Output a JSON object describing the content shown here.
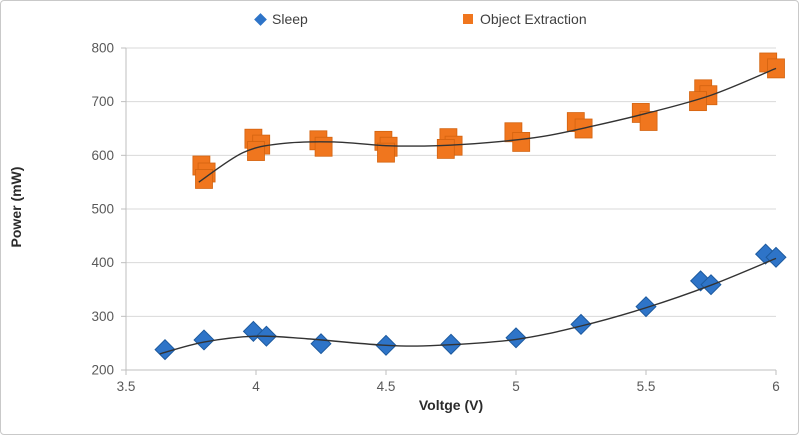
{
  "chart_data": {
    "type": "scatter",
    "title": "",
    "xlabel": "Voltge (V)",
    "ylabel": "Power (mW)",
    "xlim": [
      3.5,
      6
    ],
    "ylim": [
      200,
      800
    ],
    "x_ticks": [
      3.5,
      4,
      4.5,
      5,
      5.5,
      6
    ],
    "x_tick_labels": [
      "3.5",
      "4",
      "4.5",
      "5",
      "5.5",
      "6"
    ],
    "y_ticks": [
      200,
      300,
      400,
      500,
      600,
      700,
      800
    ],
    "y_tick_labels": [
      "200",
      "300",
      "400",
      "500",
      "600",
      "700",
      "800"
    ],
    "grid": true,
    "legend_position": "top-center",
    "colors": {
      "sleep": "#2e74c8",
      "sleep_edge": "#1d5a9e",
      "object_extraction": "#f0761e",
      "object_extraction_edge": "#d3630f",
      "trend_line": "#333333",
      "gridline": "#d9d9d9",
      "axis_line": "#bfbfbf",
      "tick_label": "#595959"
    },
    "series": [
      {
        "name": "Sleep",
        "marker": "diamond",
        "points": [
          [
            3.65,
            238
          ],
          [
            3.8,
            256
          ],
          [
            3.99,
            272
          ],
          [
            4.04,
            263
          ],
          [
            4.25,
            249
          ],
          [
            4.5,
            246
          ],
          [
            4.75,
            248
          ],
          [
            5.0,
            260
          ],
          [
            5.25,
            285
          ],
          [
            5.5,
            318
          ],
          [
            5.71,
            366
          ],
          [
            5.75,
            359
          ],
          [
            5.96,
            416
          ],
          [
            6.0,
            410
          ]
        ],
        "trend": [
          [
            3.63,
            230
          ],
          [
            3.8,
            252
          ],
          [
            4.0,
            263
          ],
          [
            4.2,
            258
          ],
          [
            4.5,
            246
          ],
          [
            4.7,
            246
          ],
          [
            5.0,
            257
          ],
          [
            5.25,
            282
          ],
          [
            5.5,
            316
          ],
          [
            5.75,
            358
          ],
          [
            6.0,
            408
          ]
        ]
      },
      {
        "name": "Object Extraction",
        "marker": "square",
        "points": [
          [
            3.79,
            581
          ],
          [
            3.81,
            568
          ],
          [
            3.8,
            556
          ],
          [
            3.99,
            631
          ],
          [
            4.02,
            620
          ],
          [
            4.0,
            608
          ],
          [
            4.24,
            628
          ],
          [
            4.26,
            616
          ],
          [
            4.49,
            627
          ],
          [
            4.51,
            616
          ],
          [
            4.5,
            605
          ],
          [
            4.74,
            632
          ],
          [
            4.76,
            618
          ],
          [
            4.73,
            612
          ],
          [
            4.99,
            643
          ],
          [
            5.02,
            625
          ],
          [
            5.23,
            662
          ],
          [
            5.26,
            650
          ],
          [
            5.48,
            679
          ],
          [
            5.51,
            664
          ],
          [
            5.72,
            723
          ],
          [
            5.74,
            712
          ],
          [
            5.7,
            701
          ],
          [
            5.97,
            773
          ],
          [
            6.0,
            762
          ]
        ],
        "trend": [
          [
            3.78,
            550
          ],
          [
            3.95,
            605
          ],
          [
            4.1,
            622
          ],
          [
            4.3,
            625
          ],
          [
            4.5,
            618
          ],
          [
            4.7,
            618
          ],
          [
            4.9,
            624
          ],
          [
            5.1,
            635
          ],
          [
            5.3,
            655
          ],
          [
            5.5,
            678
          ],
          [
            5.75,
            712
          ],
          [
            6.0,
            762
          ]
        ]
      }
    ]
  },
  "legend": {
    "items": [
      {
        "label": "Sleep"
      },
      {
        "label": "Object Extraction"
      }
    ]
  },
  "axes": {
    "x_title": "Voltge (V)",
    "y_title": "Power (mW)"
  }
}
